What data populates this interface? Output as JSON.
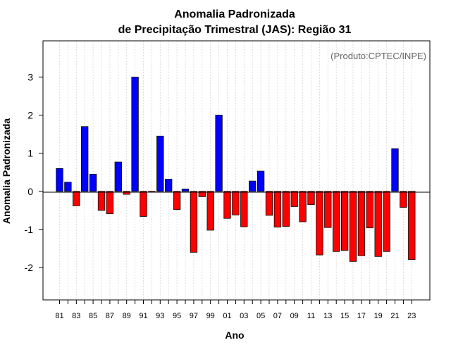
{
  "chart_data": {
    "type": "bar",
    "title_line1": "Anomalia Padronizada",
    "title_line2": "de Precipitação Trimestral (JAS): Região 31",
    "xlabel": "Ano",
    "ylabel": "Anomalia Padronizada",
    "credit": "(Produto:CPTEC/INPE)",
    "ylim": [
      -2.85,
      3.95
    ],
    "yticks": [
      -2,
      -1,
      0,
      1,
      2,
      3
    ],
    "ytick_labels": [
      "-2",
      "-1",
      "0",
      "1",
      "2",
      "3"
    ],
    "xtick_labels": [
      "81",
      "83",
      "85",
      "87",
      "89",
      "91",
      "93",
      "95",
      "97",
      "99",
      "01",
      "03",
      "05",
      "07",
      "09",
      "11",
      "13",
      "15",
      "17",
      "19",
      "21",
      "23"
    ],
    "categories": [
      "1981",
      "1982",
      "1983",
      "1984",
      "1985",
      "1986",
      "1987",
      "1988",
      "1989",
      "1990",
      "1991",
      "1992",
      "1993",
      "1994",
      "1995",
      "1996",
      "1997",
      "1998",
      "1999",
      "2000",
      "2001",
      "2002",
      "2003",
      "2004",
      "2005",
      "2006",
      "2007",
      "2008",
      "2009",
      "2010",
      "2011",
      "2012",
      "2013",
      "2014",
      "2015",
      "2016",
      "2017",
      "2018",
      "2019",
      "2020",
      "2021",
      "2022",
      "2023"
    ],
    "values": [
      0.6,
      0.24,
      -0.38,
      1.7,
      0.45,
      -0.5,
      -0.59,
      0.77,
      -0.08,
      3.0,
      -0.66,
      -0.02,
      1.45,
      0.32,
      -0.48,
      0.06,
      -1.6,
      -0.14,
      -1.02,
      2.0,
      -0.71,
      -0.62,
      -0.93,
      0.27,
      0.53,
      -0.63,
      -0.94,
      -0.92,
      -0.4,
      -0.8,
      -0.35,
      -1.67,
      -0.95,
      -1.58,
      -1.55,
      -1.84,
      -1.69,
      -0.96,
      -1.71,
      -1.58,
      1.12,
      -0.42,
      -1.79
    ],
    "colors": {
      "positive": "#0000ff",
      "negative": "#ff0000"
    }
  }
}
